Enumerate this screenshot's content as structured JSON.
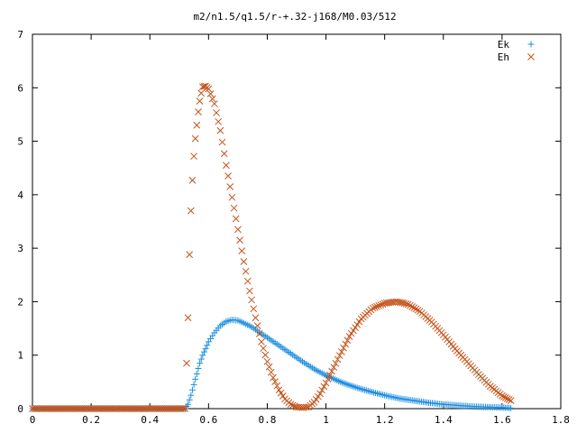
{
  "chart_data": {
    "type": "scatter",
    "title": "m2/n1.5/q1.5/r-+.32-j168/M0.03/512",
    "xlabel": "",
    "ylabel": "",
    "xlim": [
      0,
      1.8
    ],
    "ylim": [
      0,
      7
    ],
    "xticks": [
      "0",
      "0.2",
      "0.4",
      "0.6",
      "0.8",
      "1",
      "1.2",
      "1.4",
      "1.6",
      "1.8"
    ],
    "yticks": [
      "0",
      "1",
      "2",
      "3",
      "4",
      "5",
      "6",
      "7"
    ],
    "grid": false,
    "legend_position": "top-right",
    "series": [
      {
        "name": "Ek",
        "marker": "plus",
        "color": "#1f8fe0",
        "x": [
          0.0,
          0.1,
          0.2,
          0.3,
          0.4,
          0.52,
          0.53,
          0.54,
          0.55,
          0.56,
          0.57,
          0.58,
          0.59,
          0.6,
          0.62,
          0.64,
          0.66,
          0.68,
          0.7,
          0.72,
          0.74,
          0.76,
          0.78,
          0.8,
          0.84,
          0.88,
          0.92,
          0.96,
          1.0,
          1.05,
          1.1,
          1.15,
          1.2,
          1.25,
          1.3,
          1.35,
          1.4,
          1.45,
          1.5,
          1.55,
          1.6,
          1.63
        ],
        "y": [
          0,
          0,
          0,
          0,
          0,
          0,
          0.08,
          0.25,
          0.45,
          0.65,
          0.85,
          1.0,
          1.12,
          1.25,
          1.42,
          1.55,
          1.63,
          1.66,
          1.65,
          1.6,
          1.55,
          1.48,
          1.4,
          1.33,
          1.18,
          1.03,
          0.88,
          0.74,
          0.62,
          0.5,
          0.4,
          0.32,
          0.25,
          0.19,
          0.15,
          0.11,
          0.08,
          0.06,
          0.04,
          0.03,
          0.02,
          0.01
        ]
      },
      {
        "name": "Eh",
        "marker": "cross",
        "color": "#c4541b",
        "x": [
          0.0,
          0.1,
          0.2,
          0.3,
          0.4,
          0.52,
          0.53,
          0.535,
          0.54,
          0.545,
          0.55,
          0.555,
          0.56,
          0.565,
          0.57,
          0.575,
          0.58,
          0.59,
          0.6,
          0.62,
          0.64,
          0.66,
          0.68,
          0.7,
          0.72,
          0.74,
          0.76,
          0.78,
          0.8,
          0.82,
          0.84,
          0.86,
          0.88,
          0.9,
          0.92,
          0.94,
          0.96,
          0.98,
          1.0,
          1.04,
          1.08,
          1.12,
          1.16,
          1.2,
          1.24,
          1.26,
          1.28,
          1.32,
          1.36,
          1.4,
          1.44,
          1.48,
          1.52,
          1.56,
          1.6,
          1.63
        ],
        "y": [
          0,
          0,
          0,
          0,
          0,
          0,
          1.7,
          2.88,
          3.7,
          4.27,
          4.72,
          5.05,
          5.3,
          5.55,
          5.75,
          5.9,
          6.02,
          6.03,
          5.98,
          5.7,
          5.2,
          4.55,
          3.95,
          3.35,
          2.75,
          2.2,
          1.7,
          1.25,
          0.88,
          0.58,
          0.35,
          0.18,
          0.08,
          0.03,
          0.02,
          0.03,
          0.12,
          0.28,
          0.48,
          0.92,
          1.35,
          1.68,
          1.88,
          1.97,
          2.0,
          1.98,
          1.95,
          1.82,
          1.62,
          1.38,
          1.12,
          0.88,
          0.64,
          0.42,
          0.24,
          0.15
        ]
      }
    ]
  }
}
